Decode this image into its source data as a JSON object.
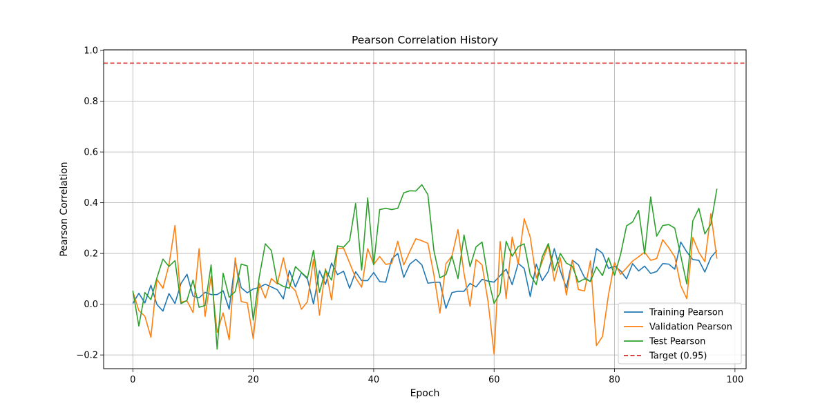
{
  "chart_data": {
    "type": "line",
    "title": "Pearson Correlation History",
    "xlabel": "Epoch",
    "ylabel": "Pearson Correlation",
    "xlim": [
      -4.85,
      101.85
    ],
    "ylim": [
      -0.254,
      1.003
    ],
    "xticks": [
      0,
      20,
      40,
      60,
      80,
      100
    ],
    "yticks": [
      -0.2,
      0.0,
      0.2,
      0.4,
      0.6,
      0.8,
      1.0
    ],
    "xtick_labels": [
      "0",
      "20",
      "40",
      "60",
      "80",
      "100"
    ],
    "ytick_labels": [
      "−0.2",
      "0.0",
      "0.2",
      "0.4",
      "0.6",
      "0.8",
      "1.0"
    ],
    "grid": true,
    "legend_position": "lower-right",
    "reference_line": {
      "label": "Target (0.95)",
      "y": 0.95,
      "color": "#d62728",
      "style": "dashed"
    },
    "series": [
      {
        "name": "Training Pearson",
        "color": "#1f77b4",
        "values": [
          0.003,
          0.043,
          0.005,
          0.075,
          -0.001,
          -0.027,
          0.042,
          0.003,
          0.082,
          0.118,
          0.032,
          0.025,
          0.047,
          0.038,
          0.038,
          0.053,
          -0.02,
          0.167,
          0.065,
          0.045,
          0.06,
          0.066,
          0.079,
          0.068,
          0.057,
          0.021,
          0.133,
          0.068,
          0.124,
          0.1,
          0.001,
          0.132,
          0.078,
          0.162,
          0.117,
          0.13,
          0.063,
          0.128,
          0.093,
          0.093,
          0.125,
          0.089,
          0.087,
          0.178,
          0.2,
          0.106,
          0.158,
          0.177,
          0.155,
          0.083,
          0.086,
          0.087,
          -0.016,
          0.046,
          0.051,
          0.051,
          0.082,
          0.068,
          0.098,
          0.091,
          0.087,
          0.113,
          0.138,
          0.077,
          0.161,
          0.141,
          0.03,
          0.158,
          0.093,
          0.129,
          0.219,
          0.131,
          0.065,
          0.174,
          0.155,
          0.106,
          0.089,
          0.219,
          0.201,
          0.141,
          0.15,
          0.132,
          0.1,
          0.16,
          0.131,
          0.15,
          0.121,
          0.129,
          0.16,
          0.158,
          0.138,
          0.245,
          0.206,
          0.176,
          0.173,
          0.127,
          0.184,
          0.212
        ]
      },
      {
        "name": "Validation Pearson",
        "color": "#ff7f0e",
        "values": [
          0.05,
          -0.025,
          -0.047,
          -0.13,
          0.098,
          0.063,
          0.155,
          0.31,
          0.008,
          0.013,
          -0.033,
          0.219,
          -0.048,
          0.11,
          -0.111,
          -0.034,
          -0.14,
          0.183,
          0.011,
          0.005,
          -0.136,
          0.083,
          0.024,
          0.101,
          0.08,
          0.183,
          0.077,
          0.053,
          -0.02,
          0.01,
          0.177,
          -0.043,
          0.14,
          0.017,
          0.22,
          0.221,
          0.163,
          0.104,
          0.067,
          0.219,
          0.157,
          0.188,
          0.157,
          0.161,
          0.248,
          0.155,
          0.208,
          0.258,
          0.25,
          0.24,
          0.116,
          -0.035,
          0.16,
          0.19,
          0.294,
          0.122,
          -0.008,
          0.176,
          0.155,
          0.009,
          -0.197,
          0.247,
          0.022,
          0.265,
          0.158,
          0.337,
          0.264,
          0.103,
          0.169,
          0.233,
          0.092,
          0.183,
          0.036,
          0.174,
          0.058,
          0.052,
          0.171,
          -0.163,
          -0.127,
          0.038,
          0.164,
          0.118,
          0.143,
          0.17,
          0.187,
          0.205,
          0.173,
          0.18,
          0.254,
          0.223,
          0.187,
          0.073,
          0.022,
          0.263,
          0.205,
          0.168,
          0.357,
          0.18
        ]
      },
      {
        "name": "Test Pearson",
        "color": "#2ca02c",
        "values": [
          0.053,
          -0.086,
          0.046,
          0.018,
          0.104,
          0.178,
          0.149,
          0.172,
          0.002,
          0.016,
          0.095,
          -0.012,
          -0.005,
          0.155,
          -0.177,
          0.122,
          0.027,
          0.05,
          0.158,
          0.151,
          -0.063,
          0.108,
          0.238,
          0.212,
          0.084,
          0.07,
          0.063,
          0.148,
          0.125,
          0.104,
          0.212,
          0.047,
          0.134,
          0.095,
          0.23,
          0.225,
          0.251,
          0.397,
          0.135,
          0.419,
          0.155,
          0.373,
          0.378,
          0.373,
          0.378,
          0.439,
          0.447,
          0.446,
          0.471,
          0.432,
          0.211,
          0.104,
          0.117,
          0.19,
          0.101,
          0.273,
          0.148,
          0.226,
          0.245,
          0.103,
          0.003,
          0.045,
          0.248,
          0.189,
          0.227,
          0.238,
          0.117,
          0.077,
          0.187,
          0.239,
          0.132,
          0.2,
          0.162,
          0.149,
          0.087,
          0.1,
          0.09,
          0.147,
          0.113,
          0.183,
          0.114,
          0.196,
          0.309,
          0.324,
          0.37,
          0.198,
          0.423,
          0.268,
          0.31,
          0.314,
          0.3,
          0.191,
          0.08,
          0.328,
          0.378,
          0.277,
          0.315,
          0.455
        ]
      }
    ]
  }
}
